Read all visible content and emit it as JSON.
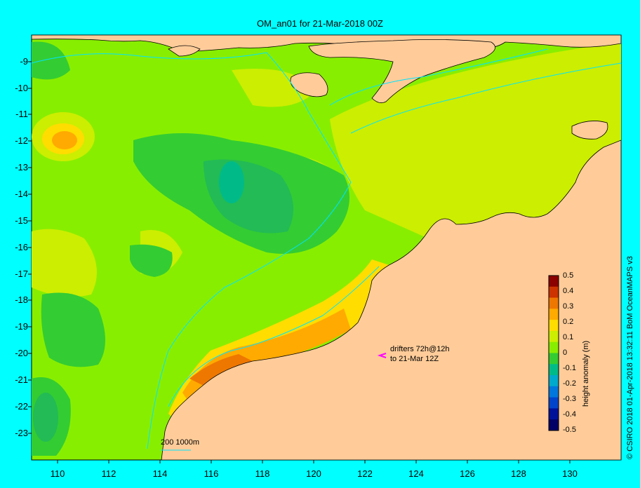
{
  "title": "OM_an01 for 21-Mar-2018 00Z",
  "credit": "© CSIRO 2018   01-Apr-2018 13:32:11 BoM OceanMAPS v3",
  "axes": {
    "lat_ticks": [
      "-9",
      "-10",
      "-11",
      "-12",
      "-13",
      "-14",
      "-15",
      "-16",
      "-17",
      "-18",
      "-19",
      "-20",
      "-21",
      "-22",
      "-23"
    ],
    "lon_ticks": [
      "110",
      "112",
      "114",
      "116",
      "118",
      "120",
      "122",
      "124",
      "126",
      "128",
      "130"
    ]
  },
  "colorbar": {
    "title": "height anomaly (m)",
    "ticks": [
      "0.5",
      "0.4",
      "0.3",
      "0.2",
      "0.1",
      "0",
      "-0.1",
      "-0.2",
      "-0.3",
      "-0.4",
      "-0.5"
    ],
    "colors": [
      "#8b0000",
      "#cc3300",
      "#ee7700",
      "#ffaa00",
      "#ffdd00",
      "#ccee00",
      "#88ee00",
      "#33cc33",
      "#00bb88",
      "#00aacc",
      "#0077dd",
      "#0044cc",
      "#001199",
      "#000066"
    ]
  },
  "annotations": {
    "drifters_line1": "drifters 72h@12h",
    "drifters_line2": "to 21-Mar 12Z",
    "scale_label": "200  1000m"
  },
  "colors": {
    "land": "#ffcc99",
    "background": "#00ffff",
    "field_base": "#88ee00"
  }
}
